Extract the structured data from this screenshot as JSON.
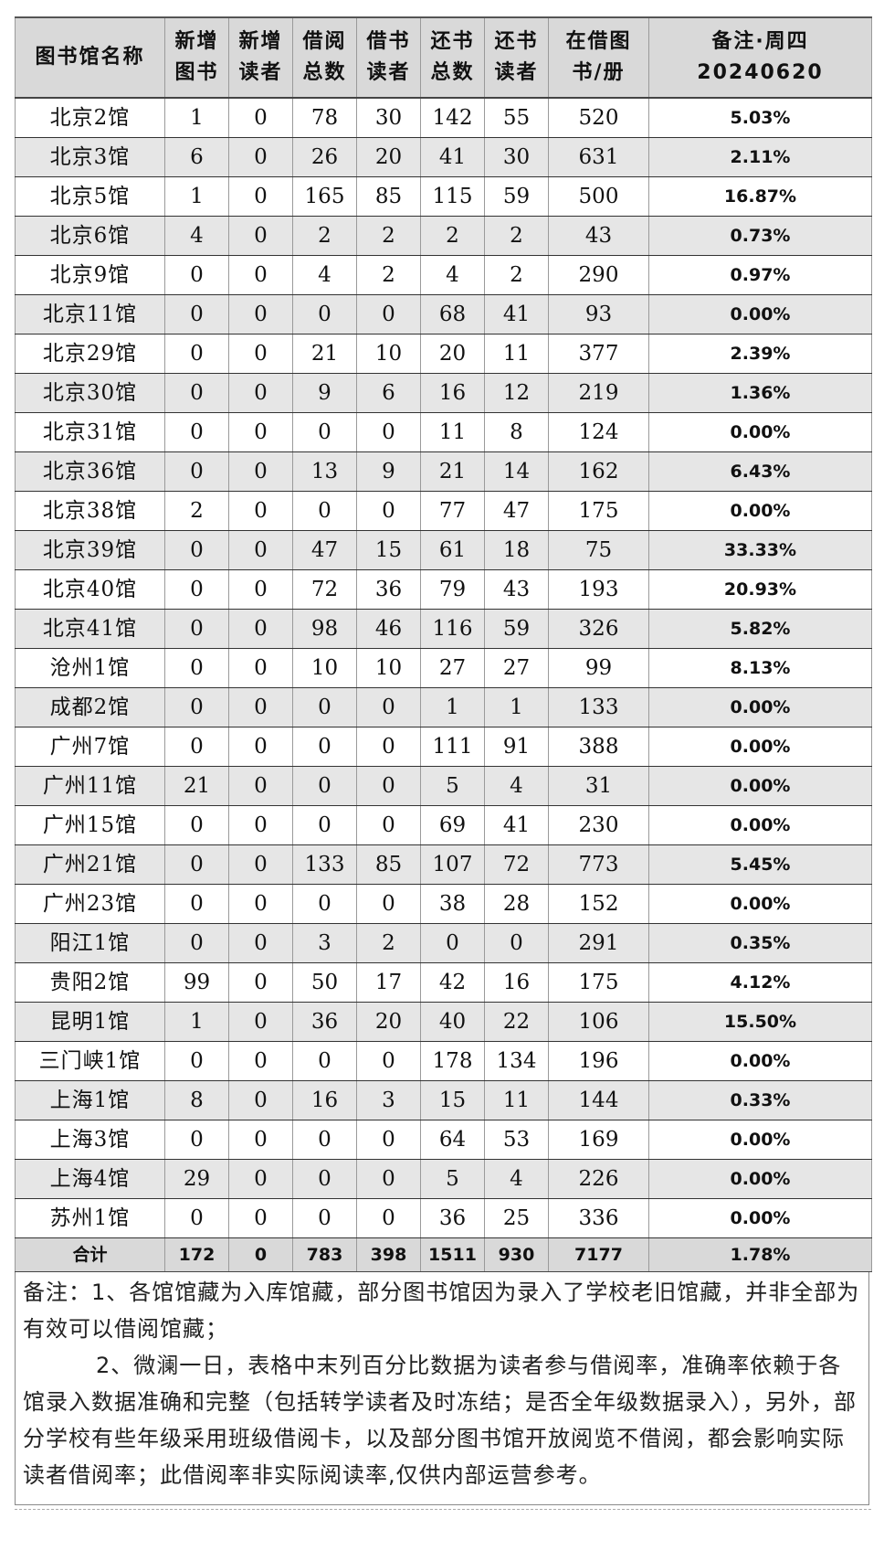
{
  "headers": [
    [
      "图书馆名称"
    ],
    [
      "新增",
      "图书"
    ],
    [
      "新增",
      "读者"
    ],
    [
      "借阅",
      "总数"
    ],
    [
      "借书",
      "读者"
    ],
    [
      "还书",
      "总数"
    ],
    [
      "还书",
      "读者"
    ],
    [
      "在借图",
      "书/册"
    ],
    [
      "备注·周四",
      "20240620"
    ]
  ],
  "rows": [
    [
      "北京2馆",
      "1",
      "0",
      "78",
      "30",
      "142",
      "55",
      "520",
      "5.03%"
    ],
    [
      "北京3馆",
      "6",
      "0",
      "26",
      "20",
      "41",
      "30",
      "631",
      "2.11%"
    ],
    [
      "北京5馆",
      "1",
      "0",
      "165",
      "85",
      "115",
      "59",
      "500",
      "16.87%"
    ],
    [
      "北京6馆",
      "4",
      "0",
      "2",
      "2",
      "2",
      "2",
      "43",
      "0.73%"
    ],
    [
      "北京9馆",
      "0",
      "0",
      "4",
      "2",
      "4",
      "2",
      "290",
      "0.97%"
    ],
    [
      "北京11馆",
      "0",
      "0",
      "0",
      "0",
      "68",
      "41",
      "93",
      "0.00%"
    ],
    [
      "北京29馆",
      "0",
      "0",
      "21",
      "10",
      "20",
      "11",
      "377",
      "2.39%"
    ],
    [
      "北京30馆",
      "0",
      "0",
      "9",
      "6",
      "16",
      "12",
      "219",
      "1.36%"
    ],
    [
      "北京31馆",
      "0",
      "0",
      "0",
      "0",
      "11",
      "8",
      "124",
      "0.00%"
    ],
    [
      "北京36馆",
      "0",
      "0",
      "13",
      "9",
      "21",
      "14",
      "162",
      "6.43%"
    ],
    [
      "北京38馆",
      "2",
      "0",
      "0",
      "0",
      "77",
      "47",
      "175",
      "0.00%"
    ],
    [
      "北京39馆",
      "0",
      "0",
      "47",
      "15",
      "61",
      "18",
      "75",
      "33.33%"
    ],
    [
      "北京40馆",
      "0",
      "0",
      "72",
      "36",
      "79",
      "43",
      "193",
      "20.93%"
    ],
    [
      "北京41馆",
      "0",
      "0",
      "98",
      "46",
      "116",
      "59",
      "326",
      "5.82%"
    ],
    [
      "沧州1馆",
      "0",
      "0",
      "10",
      "10",
      "27",
      "27",
      "99",
      "8.13%"
    ],
    [
      "成都2馆",
      "0",
      "0",
      "0",
      "0",
      "1",
      "1",
      "133",
      "0.00%"
    ],
    [
      "广州7馆",
      "0",
      "0",
      "0",
      "0",
      "111",
      "91",
      "388",
      "0.00%"
    ],
    [
      "广州11馆",
      "21",
      "0",
      "0",
      "0",
      "5",
      "4",
      "31",
      "0.00%"
    ],
    [
      "广州15馆",
      "0",
      "0",
      "0",
      "0",
      "69",
      "41",
      "230",
      "0.00%"
    ],
    [
      "广州21馆",
      "0",
      "0",
      "133",
      "85",
      "107",
      "72",
      "773",
      "5.45%"
    ],
    [
      "广州23馆",
      "0",
      "0",
      "0",
      "0",
      "38",
      "28",
      "152",
      "0.00%"
    ],
    [
      "阳江1馆",
      "0",
      "0",
      "3",
      "2",
      "0",
      "0",
      "291",
      "0.35%"
    ],
    [
      "贵阳2馆",
      "99",
      "0",
      "50",
      "17",
      "42",
      "16",
      "175",
      "4.12%"
    ],
    [
      "昆明1馆",
      "1",
      "0",
      "36",
      "20",
      "40",
      "22",
      "106",
      "15.50%"
    ],
    [
      "三门峡1馆",
      "0",
      "0",
      "0",
      "0",
      "178",
      "134",
      "196",
      "0.00%"
    ],
    [
      "上海1馆",
      "8",
      "0",
      "16",
      "3",
      "15",
      "11",
      "144",
      "0.33%"
    ],
    [
      "上海3馆",
      "0",
      "0",
      "0",
      "0",
      "64",
      "53",
      "169",
      "0.00%"
    ],
    [
      "上海4馆",
      "29",
      "0",
      "0",
      "0",
      "5",
      "4",
      "226",
      "0.00%"
    ],
    [
      "苏州1馆",
      "0",
      "0",
      "0",
      "0",
      "36",
      "25",
      "336",
      "0.00%"
    ]
  ],
  "total": [
    "合计",
    "172",
    "0",
    "783",
    "398",
    "1511",
    "930",
    "7177",
    "1.78%"
  ],
  "notes": [
    "备注：1、各馆馆藏为入库馆藏，部分图书馆因为录入了学校老旧馆藏，并非全部为有效可以借阅馆藏；",
    "2、微澜一日，表格中末列百分比数据为读者参与借阅率，准确率依赖于各馆录入数据准确和完整（包括转学读者及时冻结；是否全年级数据录入），另外，部分学校有些年级采用班级借阅卡，以及部分图书馆开放阅览不借阅，都会影响实际读者借阅率；此借阅率非实际阅读率,仅供内部运营参考。"
  ]
}
